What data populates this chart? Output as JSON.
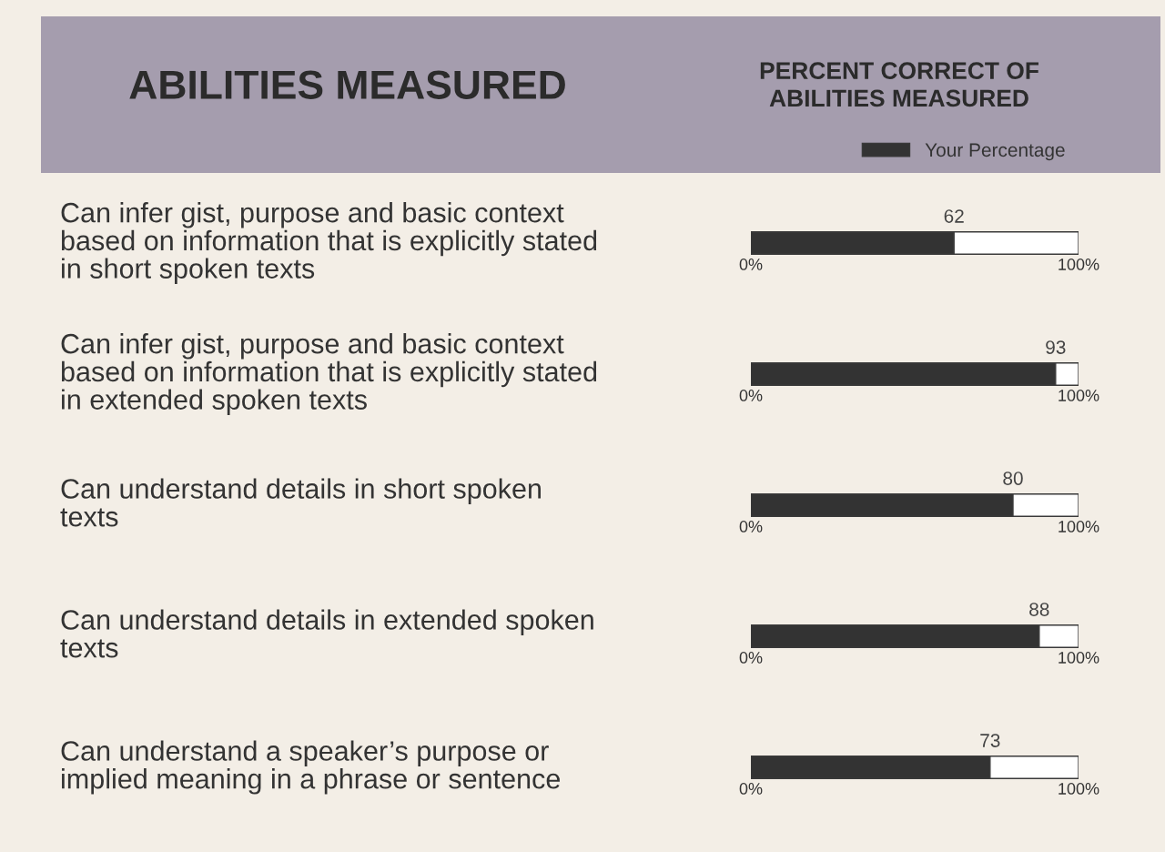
{
  "chart_data": {
    "type": "bar",
    "orientation": "horizontal",
    "stacked": true,
    "title": "PERCENT CORRECT OF ABILITIES MEASURED",
    "ylabel": "ABILITIES MEASURED",
    "categories": [
      "Can infer gist, purpose and basic context based on information that is explicitly stated in short spoken texts",
      "Can infer gist, purpose and basic context based on information that is explicitly stated in extended spoken texts",
      "Can understand details in short spoken texts",
      "Can understand details in extended spoken texts",
      "Can understand a speaker’s purpose or implied meaning in a phrase or sentence"
    ],
    "series": [
      {
        "name": "Your Percentage",
        "color": "#333333",
        "values": [
          62,
          93,
          80,
          88,
          73
        ],
        "value_labels": [
          "62",
          "93",
          "80",
          "88",
          "73"
        ]
      },
      {
        "color": "#ffffff",
        "values": [
          38,
          7,
          20,
          12,
          27
        ]
      }
    ],
    "xlim": [
      0,
      100
    ],
    "xticks": [
      {
        "value": 0,
        "label": "0%"
      },
      {
        "value": 100,
        "label": "100%"
      }
    ],
    "legend": "top"
  }
}
